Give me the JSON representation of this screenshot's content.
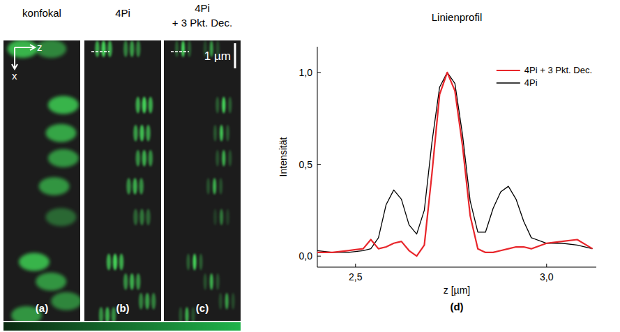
{
  "panels": [
    {
      "title": "konfokal",
      "letter": "(a)",
      "type": "confocal"
    },
    {
      "title": "4Pi",
      "letter": "(b)",
      "type": "4pi"
    },
    {
      "title": "4Pi + 3 Pkt. Dec.",
      "letter": "(c)",
      "type": "4pi-deconvolved"
    }
  ],
  "image_axes": {
    "z": "z",
    "x": "x"
  },
  "scale_bar": "1 µm",
  "chart_data": {
    "type": "line",
    "title": "Linienprofil",
    "x_label": "z [µm]",
    "y_label": "Intensität",
    "annotations": [
      "(d)"
    ],
    "x": [
      2.4,
      2.44,
      2.48,
      2.52,
      2.54,
      2.56,
      2.58,
      2.6,
      2.62,
      2.64,
      2.66,
      2.68,
      2.7,
      2.72,
      2.74,
      2.76,
      2.78,
      2.8,
      2.82,
      2.84,
      2.86,
      2.88,
      2.9,
      2.92,
      2.94,
      2.96,
      3.0,
      3.04,
      3.08,
      3.12
    ],
    "series": [
      {
        "name": "4Pi + 3 Pkt. Dec.",
        "color": "#e8262b",
        "values": [
          0.02,
          0.02,
          0.03,
          0.04,
          0.09,
          0.04,
          0.05,
          0.07,
          0.08,
          0.03,
          0.0,
          0.06,
          0.45,
          0.88,
          1.0,
          0.9,
          0.6,
          0.22,
          0.04,
          0.02,
          0.02,
          0.03,
          0.04,
          0.05,
          0.05,
          0.04,
          0.07,
          0.08,
          0.09,
          0.04
        ]
      },
      {
        "name": "4Pi",
        "color": "#000000",
        "values": [
          0.03,
          0.02,
          0.02,
          0.03,
          0.04,
          0.1,
          0.28,
          0.36,
          0.31,
          0.17,
          0.12,
          0.25,
          0.62,
          0.92,
          1.0,
          0.94,
          0.66,
          0.3,
          0.13,
          0.13,
          0.26,
          0.35,
          0.38,
          0.31,
          0.19,
          0.1,
          0.07,
          0.07,
          0.06,
          0.04
        ]
      }
    ],
    "xlim": [
      2.4,
      3.13
    ],
    "ylim": [
      -0.06,
      1.14
    ],
    "xticks": [
      {
        "value": 2.5,
        "label": "2,5"
      },
      {
        "value": 3.0,
        "label": "3,0"
      }
    ],
    "yticks": [
      {
        "value": 0,
        "label": "0,0"
      },
      {
        "value": 0.5,
        "label": "0,5"
      },
      {
        "value": 1.0,
        "label": "1,0"
      }
    ],
    "legend": "upper right",
    "grid": false
  }
}
